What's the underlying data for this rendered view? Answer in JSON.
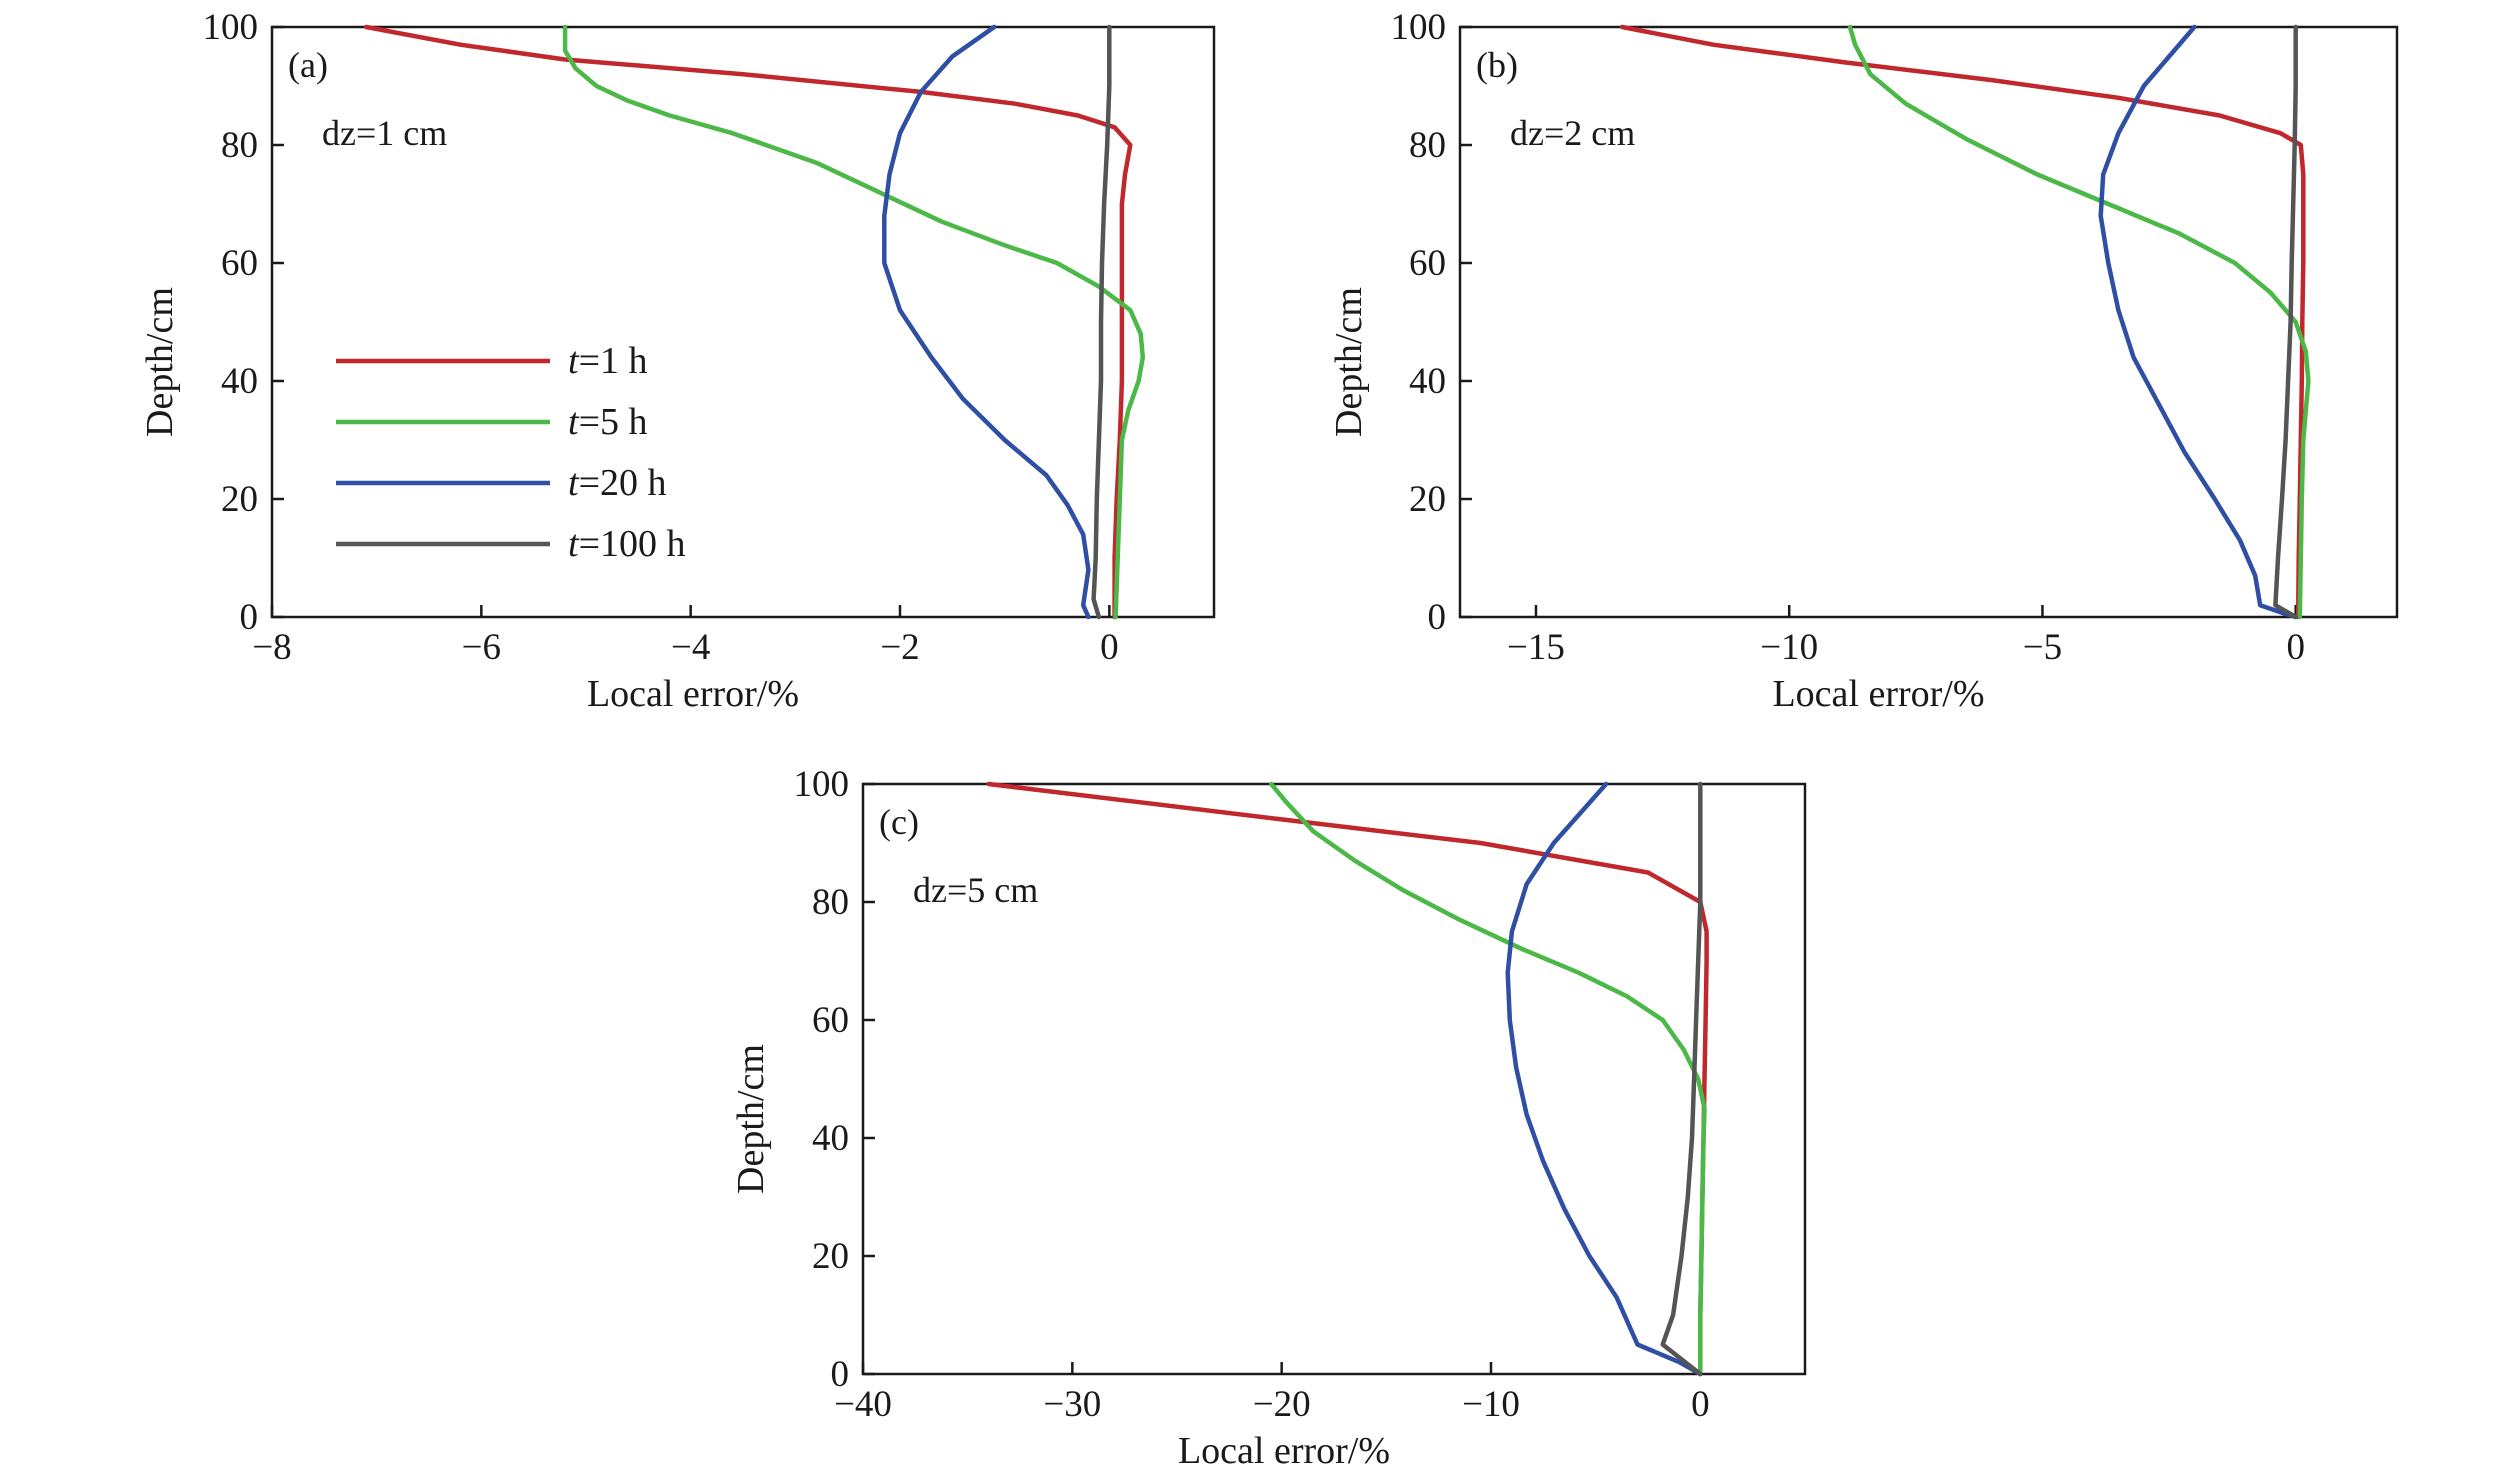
{
  "chart_data": [
    {
      "type": "line",
      "panel_label": "(a)",
      "annotation": "dz=1 cm",
      "xlabel": "Local error/%",
      "ylabel": "Depth/cm",
      "xlim": [
        -8,
        1
      ],
      "ylim": [
        0,
        100
      ],
      "xticks": [
        -8,
        -6,
        -4,
        -2,
        0
      ],
      "xtick_labels": [
        "−8",
        "−6",
        "−4",
        "−2",
        "0"
      ],
      "yticks": [
        0,
        20,
        40,
        60,
        80,
        100
      ],
      "ytick_labels": [
        "0",
        "20",
        "40",
        "60",
        "80",
        "100"
      ],
      "legend": {
        "placement": "left-middle",
        "entries": [
          {
            "prefix": "t",
            "suffix": "=1 h",
            "color": "#c0282d"
          },
          {
            "prefix": "t",
            "suffix": "=5 h",
            "color": "#4cb848"
          },
          {
            "prefix": "t",
            "suffix": "=20 h",
            "color": "#2e4fa3"
          },
          {
            "prefix": "t",
            "suffix": "=100 h",
            "color": "#555555"
          }
        ]
      },
      "series": [
        {
          "color": "#c0282d",
          "points": [
            [
              -7.1,
              100
            ],
            [
              -6.2,
              97
            ],
            [
              -5.2,
              94.5
            ],
            [
              -3.5,
              92
            ],
            [
              -1.8,
              89
            ],
            [
              -0.9,
              87
            ],
            [
              -0.3,
              85
            ],
            [
              0.05,
              83
            ],
            [
              0.2,
              80
            ],
            [
              0.15,
              75
            ],
            [
              0.12,
              70
            ],
            [
              0.12,
              60
            ],
            [
              0.12,
              50
            ],
            [
              0.12,
              40
            ],
            [
              0.1,
              30
            ],
            [
              0.07,
              20
            ],
            [
              0.05,
              10
            ],
            [
              0.05,
              0
            ]
          ]
        },
        {
          "color": "#4cb848",
          "points": [
            [
              -5.2,
              100
            ],
            [
              -5.2,
              96
            ],
            [
              -5.1,
              93
            ],
            [
              -4.9,
              90
            ],
            [
              -4.6,
              87.5
            ],
            [
              -4.2,
              85
            ],
            [
              -3.6,
              82
            ],
            [
              -2.8,
              77
            ],
            [
              -2.2,
              72
            ],
            [
              -1.6,
              67
            ],
            [
              -1.0,
              63
            ],
            [
              -0.5,
              60
            ],
            [
              -0.1,
              56
            ],
            [
              0.2,
              52
            ],
            [
              0.3,
              48
            ],
            [
              0.32,
              44
            ],
            [
              0.28,
              40
            ],
            [
              0.18,
              35
            ],
            [
              0.12,
              30
            ],
            [
              0.1,
              20
            ],
            [
              0.08,
              10
            ],
            [
              0.06,
              0
            ]
          ]
        },
        {
          "color": "#2e4fa3",
          "points": [
            [
              -1.1,
              100
            ],
            [
              -1.5,
              95
            ],
            [
              -1.8,
              89
            ],
            [
              -2.0,
              82
            ],
            [
              -2.1,
              75
            ],
            [
              -2.15,
              68
            ],
            [
              -2.15,
              60
            ],
            [
              -2.0,
              52
            ],
            [
              -1.7,
              44
            ],
            [
              -1.4,
              37
            ],
            [
              -1.0,
              30
            ],
            [
              -0.6,
              24
            ],
            [
              -0.4,
              19
            ],
            [
              -0.25,
              14
            ],
            [
              -0.2,
              8
            ],
            [
              -0.25,
              2
            ],
            [
              -0.2,
              0
            ]
          ]
        },
        {
          "color": "#555555",
          "points": [
            [
              0.0,
              100
            ],
            [
              0.0,
              90
            ],
            [
              -0.02,
              80
            ],
            [
              -0.05,
              70
            ],
            [
              -0.07,
              60
            ],
            [
              -0.08,
              50
            ],
            [
              -0.08,
              40
            ],
            [
              -0.1,
              30
            ],
            [
              -0.12,
              20
            ],
            [
              -0.13,
              10
            ],
            [
              -0.15,
              3
            ],
            [
              -0.1,
              0
            ]
          ]
        }
      ]
    },
    {
      "type": "line",
      "panel_label": "(b)",
      "annotation": "dz=2 cm",
      "xlabel": "Local error/%",
      "ylabel": "Depth/cm",
      "xlim": [
        -16.5,
        2
      ],
      "ylim": [
        0,
        100
      ],
      "xticks": [
        -15,
        -10,
        -5,
        0
      ],
      "xtick_labels": [
        "−15",
        "−10",
        "−5",
        "0"
      ],
      "yticks": [
        0,
        20,
        40,
        60,
        80,
        100
      ],
      "ytick_labels": [
        "0",
        "20",
        "40",
        "60",
        "80",
        "100"
      ],
      "series": [
        {
          "color": "#c0282d",
          "points": [
            [
              -13.3,
              100
            ],
            [
              -11.5,
              97
            ],
            [
              -8.9,
              94
            ],
            [
              -6.0,
              91
            ],
            [
              -3.5,
              88
            ],
            [
              -1.5,
              85
            ],
            [
              -0.3,
              82
            ],
            [
              0.1,
              80
            ],
            [
              0.15,
              75
            ],
            [
              0.15,
              60
            ],
            [
              0.13,
              50
            ],
            [
              0.12,
              40
            ],
            [
              0.1,
              30
            ],
            [
              0.08,
              20
            ],
            [
              0.06,
              10
            ],
            [
              0.05,
              0
            ]
          ]
        },
        {
          "color": "#4cb848",
          "points": [
            [
              -8.8,
              100
            ],
            [
              -8.7,
              97
            ],
            [
              -8.4,
              92
            ],
            [
              -7.7,
              87
            ],
            [
              -6.5,
              81
            ],
            [
              -5.1,
              75
            ],
            [
              -3.7,
              70
            ],
            [
              -2.3,
              65
            ],
            [
              -1.2,
              60
            ],
            [
              -0.5,
              55
            ],
            [
              0.0,
              50
            ],
            [
              0.2,
              45
            ],
            [
              0.25,
              40
            ],
            [
              0.2,
              35
            ],
            [
              0.15,
              30
            ],
            [
              0.12,
              20
            ],
            [
              0.1,
              10
            ],
            [
              0.08,
              0
            ]
          ]
        },
        {
          "color": "#2e4fa3",
          "points": [
            [
              -2.0,
              100
            ],
            [
              -2.5,
              95
            ],
            [
              -3.0,
              90
            ],
            [
              -3.5,
              82
            ],
            [
              -3.8,
              75
            ],
            [
              -3.85,
              68
            ],
            [
              -3.7,
              60
            ],
            [
              -3.5,
              52
            ],
            [
              -3.2,
              44
            ],
            [
              -2.7,
              36
            ],
            [
              -2.2,
              28
            ],
            [
              -1.6,
              20
            ],
            [
              -1.1,
              13
            ],
            [
              -0.8,
              7
            ],
            [
              -0.7,
              2
            ],
            [
              -0.2,
              0.5
            ],
            [
              0.0,
              0
            ]
          ]
        },
        {
          "color": "#555555",
          "points": [
            [
              0.0,
              100
            ],
            [
              0.0,
              90
            ],
            [
              -0.02,
              80
            ],
            [
              -0.05,
              70
            ],
            [
              -0.08,
              60
            ],
            [
              -0.1,
              50
            ],
            [
              -0.15,
              40
            ],
            [
              -0.2,
              30
            ],
            [
              -0.27,
              20
            ],
            [
              -0.35,
              10
            ],
            [
              -0.4,
              2
            ],
            [
              0.0,
              0
            ]
          ]
        }
      ]
    },
    {
      "type": "line",
      "panel_label": "(c)",
      "annotation": "dz=5 cm",
      "xlabel": "Local error/%",
      "ylabel": "Depth/cm",
      "xlim": [
        -40,
        5
      ],
      "ylim": [
        0,
        100
      ],
      "xticks": [
        -40,
        -30,
        -20,
        -10,
        0
      ],
      "xtick_labels": [
        "−40",
        "−30",
        "−20",
        "−10",
        "0"
      ],
      "yticks": [
        0,
        20,
        40,
        60,
        80,
        100
      ],
      "ytick_labels": [
        "0",
        "20",
        "40",
        "60",
        "80",
        "100"
      ],
      "series": [
        {
          "color": "#c0282d",
          "points": [
            [
              -34.0,
              100
            ],
            [
              -27.0,
              97
            ],
            [
              -20.0,
              94
            ],
            [
              -10.5,
              90
            ],
            [
              -2.5,
              85
            ],
            [
              0.0,
              80
            ],
            [
              0.3,
              75
            ],
            [
              0.3,
              70
            ],
            [
              0.25,
              60
            ],
            [
              0.2,
              50
            ],
            [
              0.15,
              40
            ],
            [
              0.1,
              30
            ],
            [
              0.05,
              20
            ],
            [
              0.0,
              10
            ],
            [
              0.0,
              0
            ]
          ]
        },
        {
          "color": "#4cb848",
          "points": [
            [
              -20.5,
              100
            ],
            [
              -19.8,
              97
            ],
            [
              -18.5,
              92
            ],
            [
              -16.5,
              87
            ],
            [
              -14.2,
              82
            ],
            [
              -11.5,
              77
            ],
            [
              -8.5,
              72
            ],
            [
              -5.8,
              68
            ],
            [
              -3.5,
              64
            ],
            [
              -1.8,
              60
            ],
            [
              -0.8,
              55
            ],
            [
              -0.1,
              50
            ],
            [
              0.2,
              45
            ],
            [
              0.15,
              40
            ],
            [
              0.1,
              30
            ],
            [
              0.05,
              20
            ],
            [
              0.0,
              10
            ],
            [
              0.0,
              0
            ]
          ]
        },
        {
          "color": "#2e4fa3",
          "points": [
            [
              -4.5,
              100
            ],
            [
              -5.5,
              96
            ],
            [
              -7.0,
              90
            ],
            [
              -8.3,
              83
            ],
            [
              -9.0,
              75
            ],
            [
              -9.2,
              68
            ],
            [
              -9.1,
              60
            ],
            [
              -8.8,
              52
            ],
            [
              -8.3,
              44
            ],
            [
              -7.5,
              36
            ],
            [
              -6.5,
              28
            ],
            [
              -5.3,
              20
            ],
            [
              -4.0,
              13
            ],
            [
              -3.0,
              5
            ],
            [
              -1.0,
              2
            ],
            [
              0.0,
              0
            ]
          ]
        },
        {
          "color": "#555555",
          "points": [
            [
              0.0,
              100
            ],
            [
              0.0,
              90
            ],
            [
              0.0,
              80
            ],
            [
              -0.1,
              70
            ],
            [
              -0.2,
              60
            ],
            [
              -0.3,
              50
            ],
            [
              -0.4,
              40
            ],
            [
              -0.6,
              30
            ],
            [
              -0.9,
              20
            ],
            [
              -1.3,
              10
            ],
            [
              -1.8,
              5
            ],
            [
              0.0,
              0
            ]
          ]
        }
      ]
    }
  ]
}
